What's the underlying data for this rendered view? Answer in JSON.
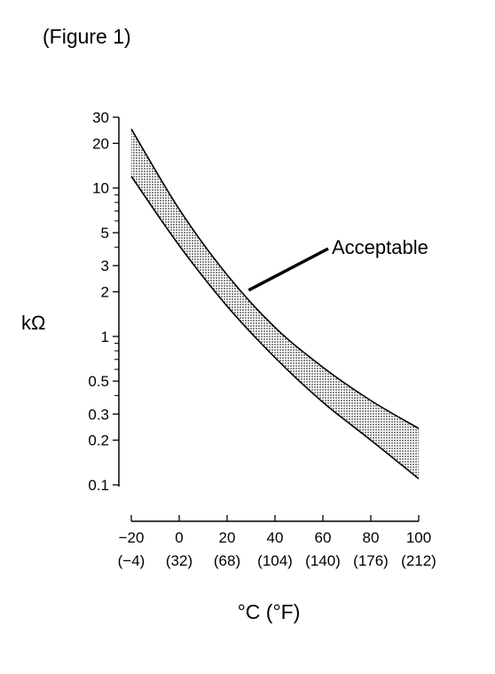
{
  "figure_label": "(Figure 1)",
  "chart_data": {
    "type": "area",
    "title": "",
    "xlabel": "°C (°F)",
    "ylabel": "kΩ",
    "yscale": "log",
    "ylim": [
      0.1,
      30
    ],
    "xlim": [
      -20,
      100
    ],
    "x_ticks": [
      {
        "value": -20,
        "label": "−20",
        "sublabel": "(−4)"
      },
      {
        "value": 0,
        "label": "0",
        "sublabel": "(32)"
      },
      {
        "value": 20,
        "label": "20",
        "sublabel": "(68)"
      },
      {
        "value": 40,
        "label": "40",
        "sublabel": "(104)"
      },
      {
        "value": 60,
        "label": "60",
        "sublabel": "(140)"
      },
      {
        "value": 80,
        "label": "80",
        "sublabel": "(176)"
      },
      {
        "value": 100,
        "label": "100",
        "sublabel": "(212)"
      }
    ],
    "y_ticks": [
      {
        "value": 30,
        "label": "30"
      },
      {
        "value": 20,
        "label": "20"
      },
      {
        "value": 10,
        "label": "10"
      },
      {
        "value": 5,
        "label": "5"
      },
      {
        "value": 3,
        "label": "3"
      },
      {
        "value": 2,
        "label": "2"
      },
      {
        "value": 1,
        "label": "1"
      },
      {
        "value": 0.5,
        "label": "0.5"
      },
      {
        "value": 0.3,
        "label": "0.3"
      },
      {
        "value": 0.2,
        "label": "0.2"
      },
      {
        "value": 0.1,
        "label": "0.1"
      }
    ],
    "y_minor_ticks": [
      9,
      8,
      7,
      6,
      4,
      0.9,
      0.8,
      0.7,
      0.6,
      0.4
    ],
    "series": [
      {
        "values": [
          {
            "x": -20,
            "y": 25
          },
          {
            "x": 0,
            "y": 7.2
          },
          {
            "x": 20,
            "y": 2.6
          },
          {
            "x": 40,
            "y": 1.15
          },
          {
            "x": 60,
            "y": 0.62
          },
          {
            "x": 80,
            "y": 0.37
          },
          {
            "x": 100,
            "y": 0.24
          }
        ]
      },
      {
        "values": [
          {
            "x": -20,
            "y": 12
          },
          {
            "x": 0,
            "y": 4.1
          },
          {
            "x": 20,
            "y": 1.6
          },
          {
            "x": 40,
            "y": 0.72
          },
          {
            "x": 60,
            "y": 0.36
          },
          {
            "x": 80,
            "y": 0.2
          },
          {
            "x": 100,
            "y": 0.11
          }
        ]
      }
    ],
    "annotations": [
      {
        "text": "Acceptable",
        "target": {
          "x": 29,
          "y": 2.05
        }
      }
    ],
    "grid": false,
    "band_fill": "#d4d4d4"
  }
}
